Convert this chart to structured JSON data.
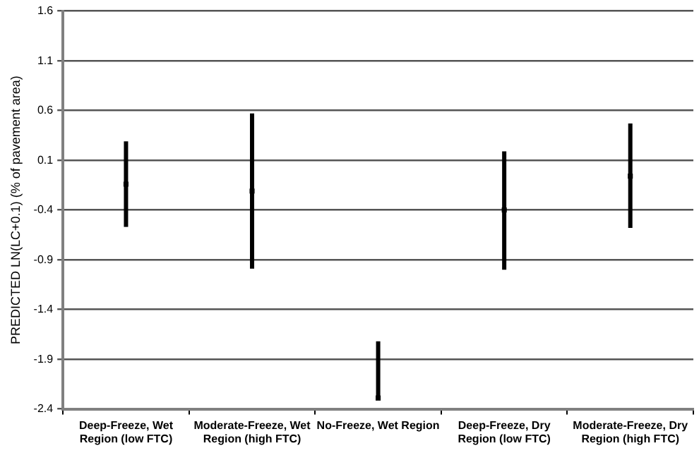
{
  "chart_data": {
    "type": "scatter",
    "ylabel": "PREDICTED LN(LC+0.1) (% of pavement area)",
    "categories": [
      [
        "Deep-Freeze, Wet",
        "Region (low FTC)"
      ],
      [
        "Moderate-Freeze, Wet",
        "Region (high FTC)"
      ],
      [
        "No-Freeze, Wet Region"
      ],
      [
        "Deep-Freeze, Dry",
        "Region (low FTC)"
      ],
      [
        "Moderate-Freeze, Dry",
        "Region (high FTC)"
      ]
    ],
    "values": [
      -0.14,
      -0.21,
      -2.29,
      -0.4,
      -0.06
    ],
    "errors": [
      [
        -0.57,
        0.29
      ],
      [
        -0.99,
        0.57
      ],
      [
        -2.3,
        -1.72
      ],
      [
        -1.0,
        0.19
      ],
      [
        -0.58,
        0.47
      ]
    ],
    "color": "#000000",
    "ylim": [
      -2.4,
      1.6
    ],
    "yticks": [
      {
        "value": -2.4,
        "label": "-2.4"
      },
      {
        "value": -1.9,
        "label": "-1.9"
      },
      {
        "value": -1.4,
        "label": "-1.4"
      },
      {
        "value": -0.9,
        "label": "-0.9"
      },
      {
        "value": -0.4,
        "label": "-0.4"
      },
      {
        "value": 0.1,
        "label": "0.1"
      },
      {
        "value": 0.6,
        "label": "0.6"
      },
      {
        "value": 1.1,
        "label": "1.1"
      },
      {
        "value": 1.6,
        "label": "1.6"
      }
    ],
    "grid": "y",
    "legend": false,
    "marker": "square"
  }
}
